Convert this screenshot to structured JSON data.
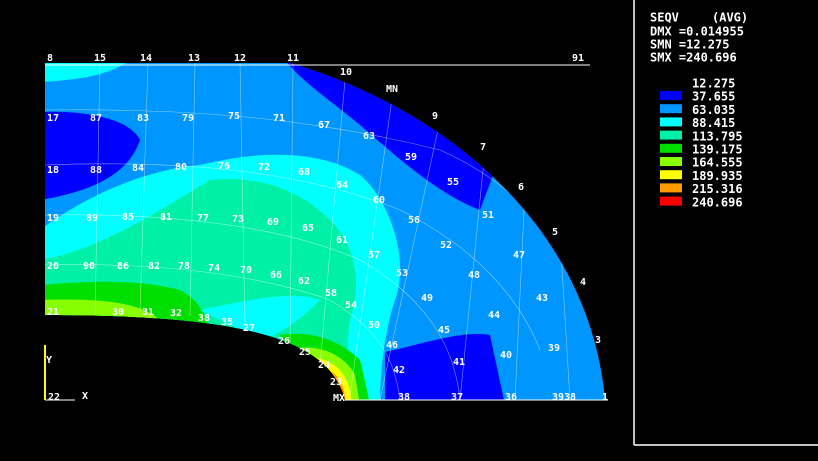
{
  "legend": {
    "heading": "SEQV",
    "avg": "(AVG)",
    "stats": [
      "DMX =0.014955",
      "SMN =12.275",
      "SMX =240.696"
    ],
    "levels": [
      "12.275",
      "37.655",
      "63.035",
      "88.415",
      "113.795",
      "139.175",
      "164.555",
      "189.935",
      "215.316",
      "240.696"
    ],
    "colors": [
      "#0000ff",
      "#0096ff",
      "#00ffff",
      "#00f0a8",
      "#00e000",
      "#88ff00",
      "#ffff00",
      "#ff9a00",
      "#ff0000"
    ]
  },
  "nodes": [
    "8",
    "15",
    "14",
    "13",
    "12",
    "11",
    "91",
    "10",
    "MN",
    "9",
    "7",
    "6",
    "5",
    "4",
    "3",
    "1",
    "17",
    "87",
    "83",
    "79",
    "75",
    "71",
    "67",
    "63",
    "59",
    "55",
    "51",
    "47",
    "43",
    "39",
    "18",
    "88",
    "84",
    "80",
    "76",
    "72",
    "68",
    "64",
    "60",
    "56",
    "52",
    "48",
    "44",
    "40",
    "19",
    "89",
    "85",
    "81",
    "77",
    "73",
    "69",
    "65",
    "61",
    "57",
    "53",
    "49",
    "45",
    "41",
    "20",
    "90",
    "86",
    "82",
    "78",
    "74",
    "70",
    "66",
    "62",
    "58",
    "54",
    "50",
    "46",
    "42",
    "21",
    "30",
    "31",
    "32",
    "38",
    "35",
    "27",
    "26",
    "25",
    "24",
    "23",
    "MX",
    "38",
    "37",
    "36",
    "3938",
    "22",
    "X",
    "Y"
  ]
}
